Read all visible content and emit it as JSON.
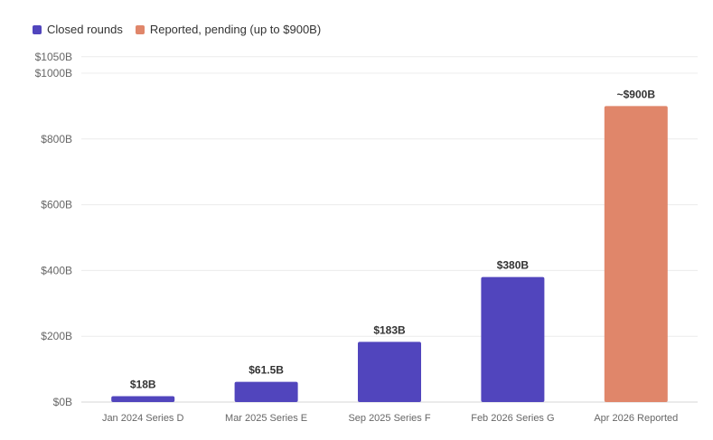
{
  "chart_data": {
    "type": "bar",
    "categories": [
      "Jan 2024 Series D",
      "Mar 2025 Series E",
      "Sep 2025 Series F",
      "Feb 2026 Series G",
      "Apr 2026 Reported"
    ],
    "values": [
      18,
      61.5,
      183,
      380,
      900
    ],
    "data_labels": [
      "$18B",
      "$61.5B",
      "$183B",
      "$380B",
      "~$900B"
    ],
    "bar_groups": [
      "closed",
      "closed",
      "closed",
      "closed",
      "pending"
    ],
    "legend": [
      {
        "key": "closed",
        "label": "Closed rounds",
        "color": "#5145bd"
      },
      {
        "key": "pending",
        "label": "Reported, pending (up to $900B)",
        "color": "#e0866a"
      }
    ],
    "legend_position": "top-left",
    "ylim": [
      0,
      1050
    ],
    "yticks": [
      0,
      200,
      400,
      600,
      800,
      1000,
      1050
    ],
    "ytick_labels": [
      "$0B",
      "$200B",
      "$400B",
      "$600B",
      "$800B",
      "$1000B",
      "$1050B"
    ],
    "grid": true,
    "title": "",
    "xlabel": "",
    "ylabel": ""
  }
}
